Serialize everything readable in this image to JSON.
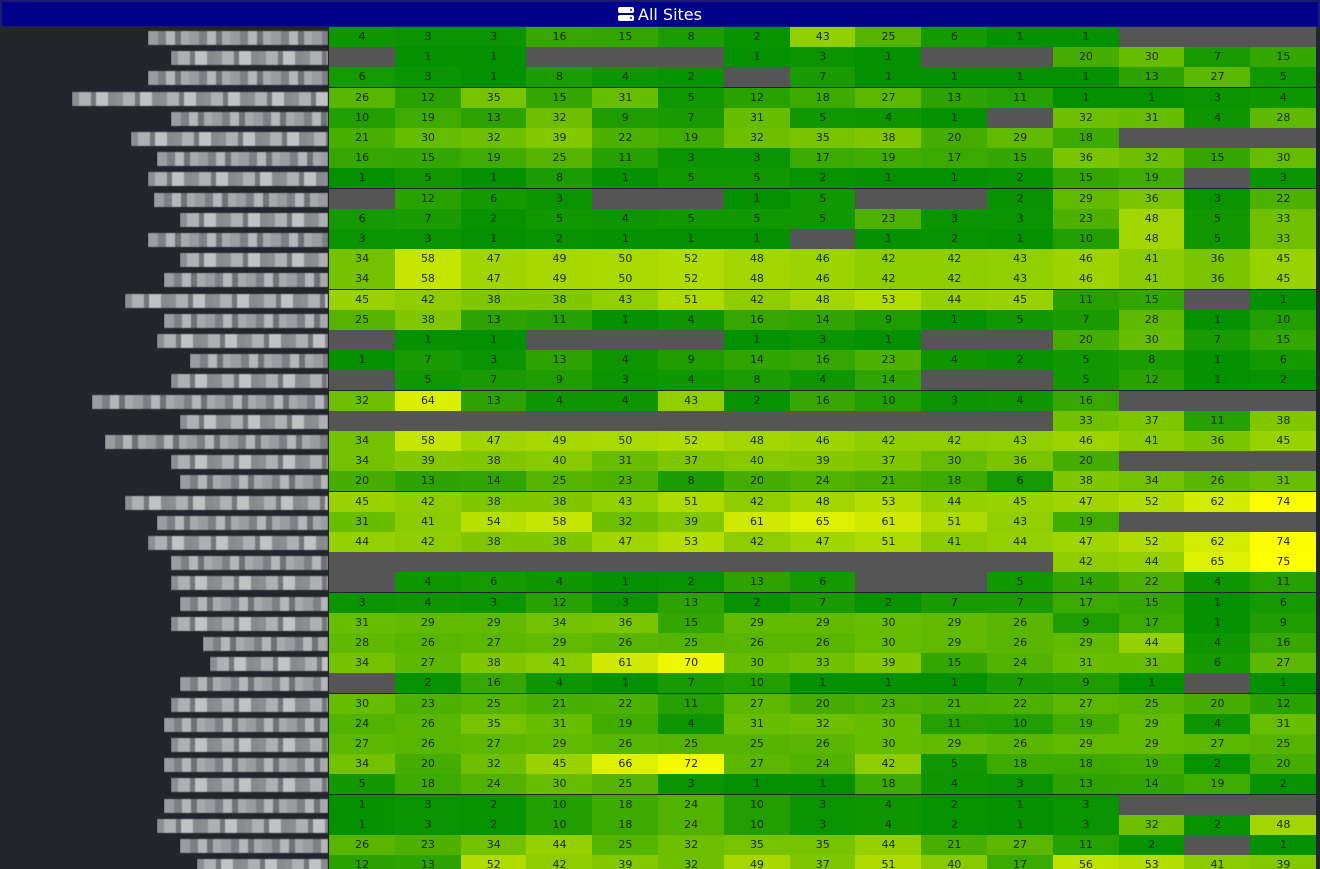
{
  "header": {
    "title": "All Sites",
    "icon": "server-icon",
    "background": "#00008b"
  },
  "colors": {
    "empty_cell": "#555555",
    "low": "#009000",
    "mid": "#8ccc00",
    "high": "#ffff00",
    "background": "#22252b"
  },
  "heatmap": {
    "columns": 15,
    "max_value": 75,
    "rows": [
      [
        "4",
        "3",
        "3",
        "16",
        "15",
        "8",
        "2",
        "43",
        "25",
        "6",
        "1",
        "1",
        null,
        null,
        null
      ],
      [
        null,
        "1",
        "1",
        null,
        null,
        null,
        "1",
        "3",
        "1",
        null,
        null,
        "20",
        "30",
        "7",
        "15"
      ],
      [
        "6",
        "3",
        "1",
        "8",
        "4",
        "2",
        null,
        "7",
        "1",
        "1",
        "1",
        "1",
        "13",
        "27",
        "5"
      ],
      [
        "26",
        "12",
        "35",
        "15",
        "31",
        "5",
        "12",
        "18",
        "27",
        "13",
        "11",
        "1",
        "1",
        "3",
        "4"
      ],
      [
        "10",
        "19",
        "13",
        "32",
        "9",
        "7",
        "31",
        "5",
        "4",
        "1",
        null,
        "32",
        "31",
        "4",
        "28"
      ],
      [
        "21",
        "30",
        "32",
        "39",
        "22",
        "19",
        "32",
        "35",
        "38",
        "20",
        "29",
        "18",
        null,
        null,
        null
      ],
      [
        "16",
        "15",
        "19",
        "25",
        "11",
        "3",
        "3",
        "17",
        "19",
        "17",
        "15",
        "36",
        "32",
        "15",
        "30"
      ],
      [
        "1",
        "5",
        "1",
        "8",
        "1",
        "5",
        "5",
        "2",
        "1",
        "1",
        "2",
        "15",
        "19",
        null,
        "3"
      ],
      [
        null,
        "12",
        "6",
        "3",
        null,
        null,
        "1",
        "5",
        null,
        null,
        "2",
        "29",
        "36",
        "3",
        "22"
      ],
      [
        "6",
        "7",
        "2",
        "5",
        "4",
        "5",
        "5",
        "5",
        "23",
        "3",
        "3",
        "23",
        "48",
        "5",
        "33"
      ],
      [
        "3",
        "3",
        "1",
        "2",
        "1",
        "1",
        "1",
        null,
        "1",
        "2",
        "1",
        "10",
        "48",
        "5",
        "33"
      ],
      [
        "34",
        "58",
        "47",
        "49",
        "50",
        "52",
        "48",
        "46",
        "42",
        "42",
        "43",
        "46",
        "41",
        "36",
        "45"
      ],
      [
        "34",
        "58",
        "47",
        "49",
        "50",
        "52",
        "48",
        "46",
        "42",
        "42",
        "43",
        "46",
        "41",
        "36",
        "45"
      ],
      [
        "45",
        "42",
        "38",
        "38",
        "43",
        "51",
        "42",
        "48",
        "53",
        "44",
        "45",
        "11",
        "15",
        null,
        "1"
      ],
      [
        "25",
        "38",
        "13",
        "11",
        "1",
        "4",
        "16",
        "14",
        "9",
        "1",
        "5",
        "7",
        "28",
        "1",
        "10"
      ],
      [
        null,
        "1",
        "1",
        null,
        null,
        null,
        "1",
        "3",
        "1",
        null,
        null,
        "20",
        "30",
        "7",
        "15"
      ],
      [
        "1",
        "7",
        "3",
        "13",
        "4",
        "9",
        "14",
        "16",
        "23",
        "4",
        "2",
        "5",
        "8",
        "1",
        "6"
      ],
      [
        null,
        "5",
        "7",
        "9",
        "3",
        "4",
        "8",
        "4",
        "14",
        null,
        null,
        "5",
        "12",
        "1",
        "2"
      ],
      [
        "32",
        "64",
        "13",
        "4",
        "4",
        "43",
        "2",
        "16",
        "10",
        "3",
        "4",
        "16",
        null,
        null,
        null
      ],
      [
        null,
        null,
        null,
        null,
        null,
        null,
        null,
        null,
        null,
        null,
        null,
        "33",
        "37",
        "11",
        "38"
      ],
      [
        "34",
        "58",
        "47",
        "49",
        "50",
        "52",
        "48",
        "46",
        "42",
        "42",
        "43",
        "46",
        "41",
        "36",
        "45"
      ],
      [
        "34",
        "39",
        "38",
        "40",
        "31",
        "37",
        "40",
        "39",
        "37",
        "30",
        "36",
        "20",
        null,
        null,
        null
      ],
      [
        "20",
        "13",
        "14",
        "25",
        "23",
        "8",
        "20",
        "24",
        "21",
        "18",
        "6",
        "38",
        "34",
        "26",
        "31"
      ],
      [
        "45",
        "42",
        "38",
        "38",
        "43",
        "51",
        "42",
        "48",
        "53",
        "44",
        "45",
        "47",
        "52",
        "62",
        "74"
      ],
      [
        "31",
        "41",
        "54",
        "58",
        "32",
        "39",
        "61",
        "65",
        "61",
        "51",
        "43",
        "19",
        null,
        null,
        null
      ],
      [
        "44",
        "42",
        "38",
        "38",
        "47",
        "53",
        "42",
        "47",
        "51",
        "41",
        "44",
        "47",
        "52",
        "62",
        "74"
      ],
      [
        null,
        null,
        null,
        null,
        null,
        null,
        null,
        null,
        null,
        null,
        null,
        "42",
        "44",
        "65",
        "75"
      ],
      [
        null,
        "4",
        "6",
        "4",
        "1",
        "2",
        "13",
        "6",
        null,
        null,
        "5",
        "14",
        "22",
        "4",
        "11"
      ],
      [
        "3",
        "4",
        "3",
        "12",
        "3",
        "13",
        "2",
        "7",
        "2",
        "7",
        "7",
        "17",
        "15",
        "1",
        "6"
      ],
      [
        "31",
        "29",
        "29",
        "34",
        "36",
        "15",
        "29",
        "29",
        "30",
        "29",
        "26",
        "9",
        "17",
        "1",
        "9"
      ],
      [
        "28",
        "26",
        "27",
        "29",
        "26",
        "25",
        "26",
        "26",
        "30",
        "29",
        "26",
        "29",
        "44",
        "4",
        "16"
      ],
      [
        "34",
        "27",
        "38",
        "41",
        "61",
        "70",
        "30",
        "33",
        "39",
        "15",
        "24",
        "31",
        "31",
        "6",
        "27"
      ],
      [
        null,
        "2",
        "16",
        "4",
        "1",
        "7",
        "10",
        "1",
        "1",
        "1",
        "7",
        "9",
        "1",
        null,
        "1"
      ],
      [
        "30",
        "23",
        "25",
        "21",
        "22",
        "11",
        "27",
        "20",
        "23",
        "21",
        "22",
        "27",
        "25",
        "20",
        "12"
      ],
      [
        "24",
        "26",
        "35",
        "31",
        "19",
        "4",
        "31",
        "32",
        "30",
        "11",
        "10",
        "19",
        "29",
        "4",
        "31"
      ],
      [
        "27",
        "26",
        "27",
        "29",
        "26",
        "25",
        "25",
        "26",
        "30",
        "29",
        "26",
        "29",
        "29",
        "27",
        "25"
      ],
      [
        "34",
        "20",
        "32",
        "45",
        "66",
        "72",
        "27",
        "24",
        "42",
        "5",
        "18",
        "18",
        "19",
        "2",
        "20"
      ],
      [
        "5",
        "18",
        "24",
        "30",
        "25",
        "3",
        "1",
        "1",
        "18",
        "4",
        "3",
        "13",
        "14",
        "19",
        "2"
      ],
      [
        "1",
        "3",
        "2",
        "10",
        "18",
        "24",
        "10",
        "3",
        "4",
        "2",
        "1",
        "3",
        null,
        null,
        null
      ],
      [
        "1",
        "3",
        "2",
        "10",
        "18",
        "24",
        "10",
        "3",
        "4",
        "2",
        "1",
        "3",
        "32",
        "2",
        "48"
      ],
      [
        "26",
        "23",
        "34",
        "44",
        "25",
        "32",
        "35",
        "35",
        "44",
        "21",
        "27",
        "11",
        "2",
        null,
        "1"
      ],
      [
        "12",
        "13",
        "52",
        "42",
        "39",
        "32",
        "49",
        "37",
        "51",
        "40",
        "17",
        "56",
        "53",
        "41",
        "39"
      ]
    ]
  },
  "row_labels": {
    "redacted": true,
    "count": 42
  }
}
